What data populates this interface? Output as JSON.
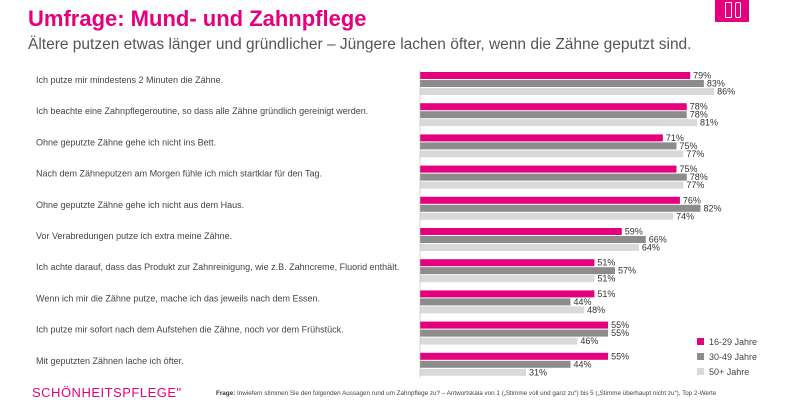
{
  "header": {
    "title": "Umfrage: Mund- und Zahnpflege",
    "subtitle": "Ältere putzen etwas länger und gründlicher – Jüngere lachen öfter, wenn die Zähne geputzt sind."
  },
  "brand_icon": "toothpaste-toothbrush-icon",
  "logo": {
    "text": "SCHÖNHEITSPFLEGE\""
  },
  "footnote": {
    "label": "Frage:",
    "text": "Inwiefern stimmen Sie den folgenden Aussagen rund um Zahnpflege zu? – Antwortskala von 1 („Stimme voll und ganz zu“) bis 5 („Stimme überhaupt nicht zu“), Top 2-Werte"
  },
  "chart_data": {
    "type": "bar",
    "orientation": "horizontal",
    "categories": [
      "Ich putze mir mindestens 2 Minuten die Zähne.",
      "Ich beachte eine Zahnpflegeroutine, so dass alle Zähne gründlich gereinigt werden.",
      "Ohne geputzte Zähne gehe ich nicht ins Bett.",
      "Nach dem Zähneputzen am Morgen fühle ich mich startklar für den Tag.",
      "Ohne geputzte Zähne gehe ich nicht aus dem Haus.",
      "Vor Verabredungen putze ich extra meine Zähne.",
      "Ich achte darauf, dass das Produkt zur Zahnreinigung, wie z.B. Zahncreme, Fluorid enthält.",
      "Wenn ich mir die Zähne putze, mache ich das jeweils nach dem Essen.",
      "Ich putze mir sofort nach dem Aufstehen die Zähne, noch vor dem Frühstück.",
      "Mit geputzten Zähnen lache ich öfter."
    ],
    "series": [
      {
        "name": "16-29 Jahre",
        "color": "#e5007e",
        "values": [
          79,
          78,
          71,
          75,
          76,
          59,
          51,
          51,
          55,
          55
        ]
      },
      {
        "name": "30-49 Jahre",
        "color": "#8c8c8c",
        "values": [
          83,
          78,
          75,
          78,
          82,
          66,
          57,
          44,
          55,
          44
        ]
      },
      {
        "name": "50+ Jahre",
        "color": "#d9d9d9",
        "values": [
          86,
          81,
          77,
          77,
          74,
          64,
          51,
          48,
          46,
          31
        ]
      }
    ],
    "value_suffix": "%",
    "legend_position": "bottom-right",
    "grid": false
  }
}
